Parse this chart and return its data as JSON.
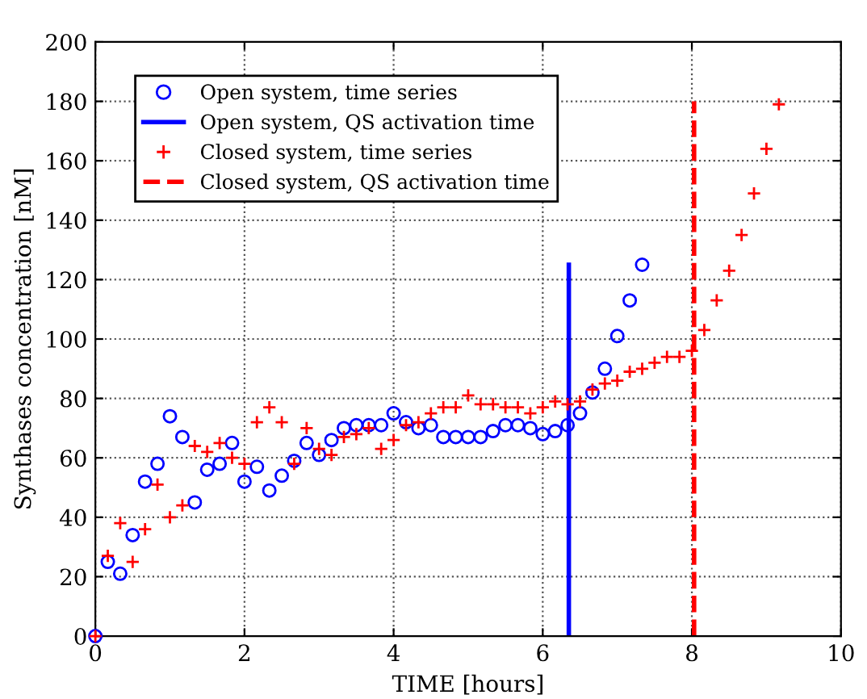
{
  "chart_data": {
    "type": "scatter",
    "xlabel": "TIME [hours]",
    "ylabel": "Synthases concentration [nM]",
    "xlim": [
      0,
      10
    ],
    "ylim": [
      0,
      200
    ],
    "xticks": [
      0,
      2,
      4,
      6,
      8,
      10
    ],
    "yticks": [
      0,
      20,
      40,
      60,
      80,
      100,
      120,
      140,
      160,
      180,
      200
    ],
    "grid": true,
    "legend": "top left",
    "series": [
      {
        "name": "Open system, time series",
        "marker": "circle",
        "color": "#0000ff",
        "x": [
          0,
          0.1667,
          0.3333,
          0.5,
          0.6667,
          0.8333,
          1,
          1.1667,
          1.3333,
          1.5,
          1.6667,
          1.8333,
          2,
          2.1667,
          2.3333,
          2.5,
          2.6667,
          2.8333,
          3,
          3.1667,
          3.3333,
          3.5,
          3.6667,
          3.8333,
          4,
          4.1667,
          4.3333,
          4.5,
          4.6667,
          4.8333,
          5,
          5.1667,
          5.3333,
          5.5,
          5.6667,
          5.8333,
          6,
          6.1667,
          6.3333,
          6.5,
          6.6667,
          6.8333,
          7,
          7.1667,
          7.3333
        ],
        "values": [
          0,
          25,
          21,
          34,
          52,
          58,
          74,
          67,
          45,
          56,
          58,
          65,
          52,
          57,
          49,
          54,
          59,
          65,
          61,
          66,
          70,
          71,
          71,
          71,
          75,
          72,
          70,
          71,
          67,
          67,
          67,
          67,
          69,
          71,
          71,
          70,
          68,
          69,
          71,
          75,
          82,
          90,
          101,
          113,
          125
        ]
      },
      {
        "name": "Open system, QS activation time",
        "type": "line",
        "line_style": "solid",
        "color": "#0000ff",
        "x": [
          6.35,
          6.35
        ],
        "values": [
          0,
          125
        ]
      },
      {
        "name": "Closed system, time series",
        "marker": "cross",
        "color": "#ff0000",
        "x": [
          0,
          0.1667,
          0.3333,
          0.5,
          0.6667,
          0.8333,
          1,
          1.1667,
          1.3333,
          1.5,
          1.6667,
          1.8333,
          2,
          2.1667,
          2.3333,
          2.5,
          2.6667,
          2.8333,
          3,
          3.1667,
          3.3333,
          3.5,
          3.6667,
          3.8333,
          4,
          4.1667,
          4.3333,
          4.5,
          4.6667,
          4.8333,
          5,
          5.1667,
          5.3333,
          5.5,
          5.6667,
          5.8333,
          6,
          6.1667,
          6.3333,
          6.5,
          6.6667,
          6.8333,
          7,
          7.1667,
          7.3333,
          7.5,
          7.6667,
          7.8333,
          8,
          8.1667,
          8.3333,
          8.5,
          8.6667,
          8.8333,
          9,
          9.1667
        ],
        "values": [
          0,
          27,
          38,
          25,
          36,
          51,
          40,
          44,
          64,
          62,
          65,
          60,
          58,
          72,
          77,
          72,
          58,
          70,
          63,
          61,
          67,
          68,
          70,
          63,
          66,
          71,
          72,
          75,
          77,
          77,
          81,
          78,
          78,
          77,
          77,
          75,
          77,
          79,
          78,
          79,
          83,
          85,
          86,
          89,
          90,
          92,
          94,
          94,
          96,
          103,
          113,
          123,
          135,
          149,
          164,
          179
        ]
      },
      {
        "name": "Closed system, QS activation time",
        "type": "line",
        "line_style": "dashed",
        "color": "#ff0000",
        "x": [
          8.03,
          8.03
        ],
        "values": [
          0,
          180
        ]
      }
    ]
  }
}
